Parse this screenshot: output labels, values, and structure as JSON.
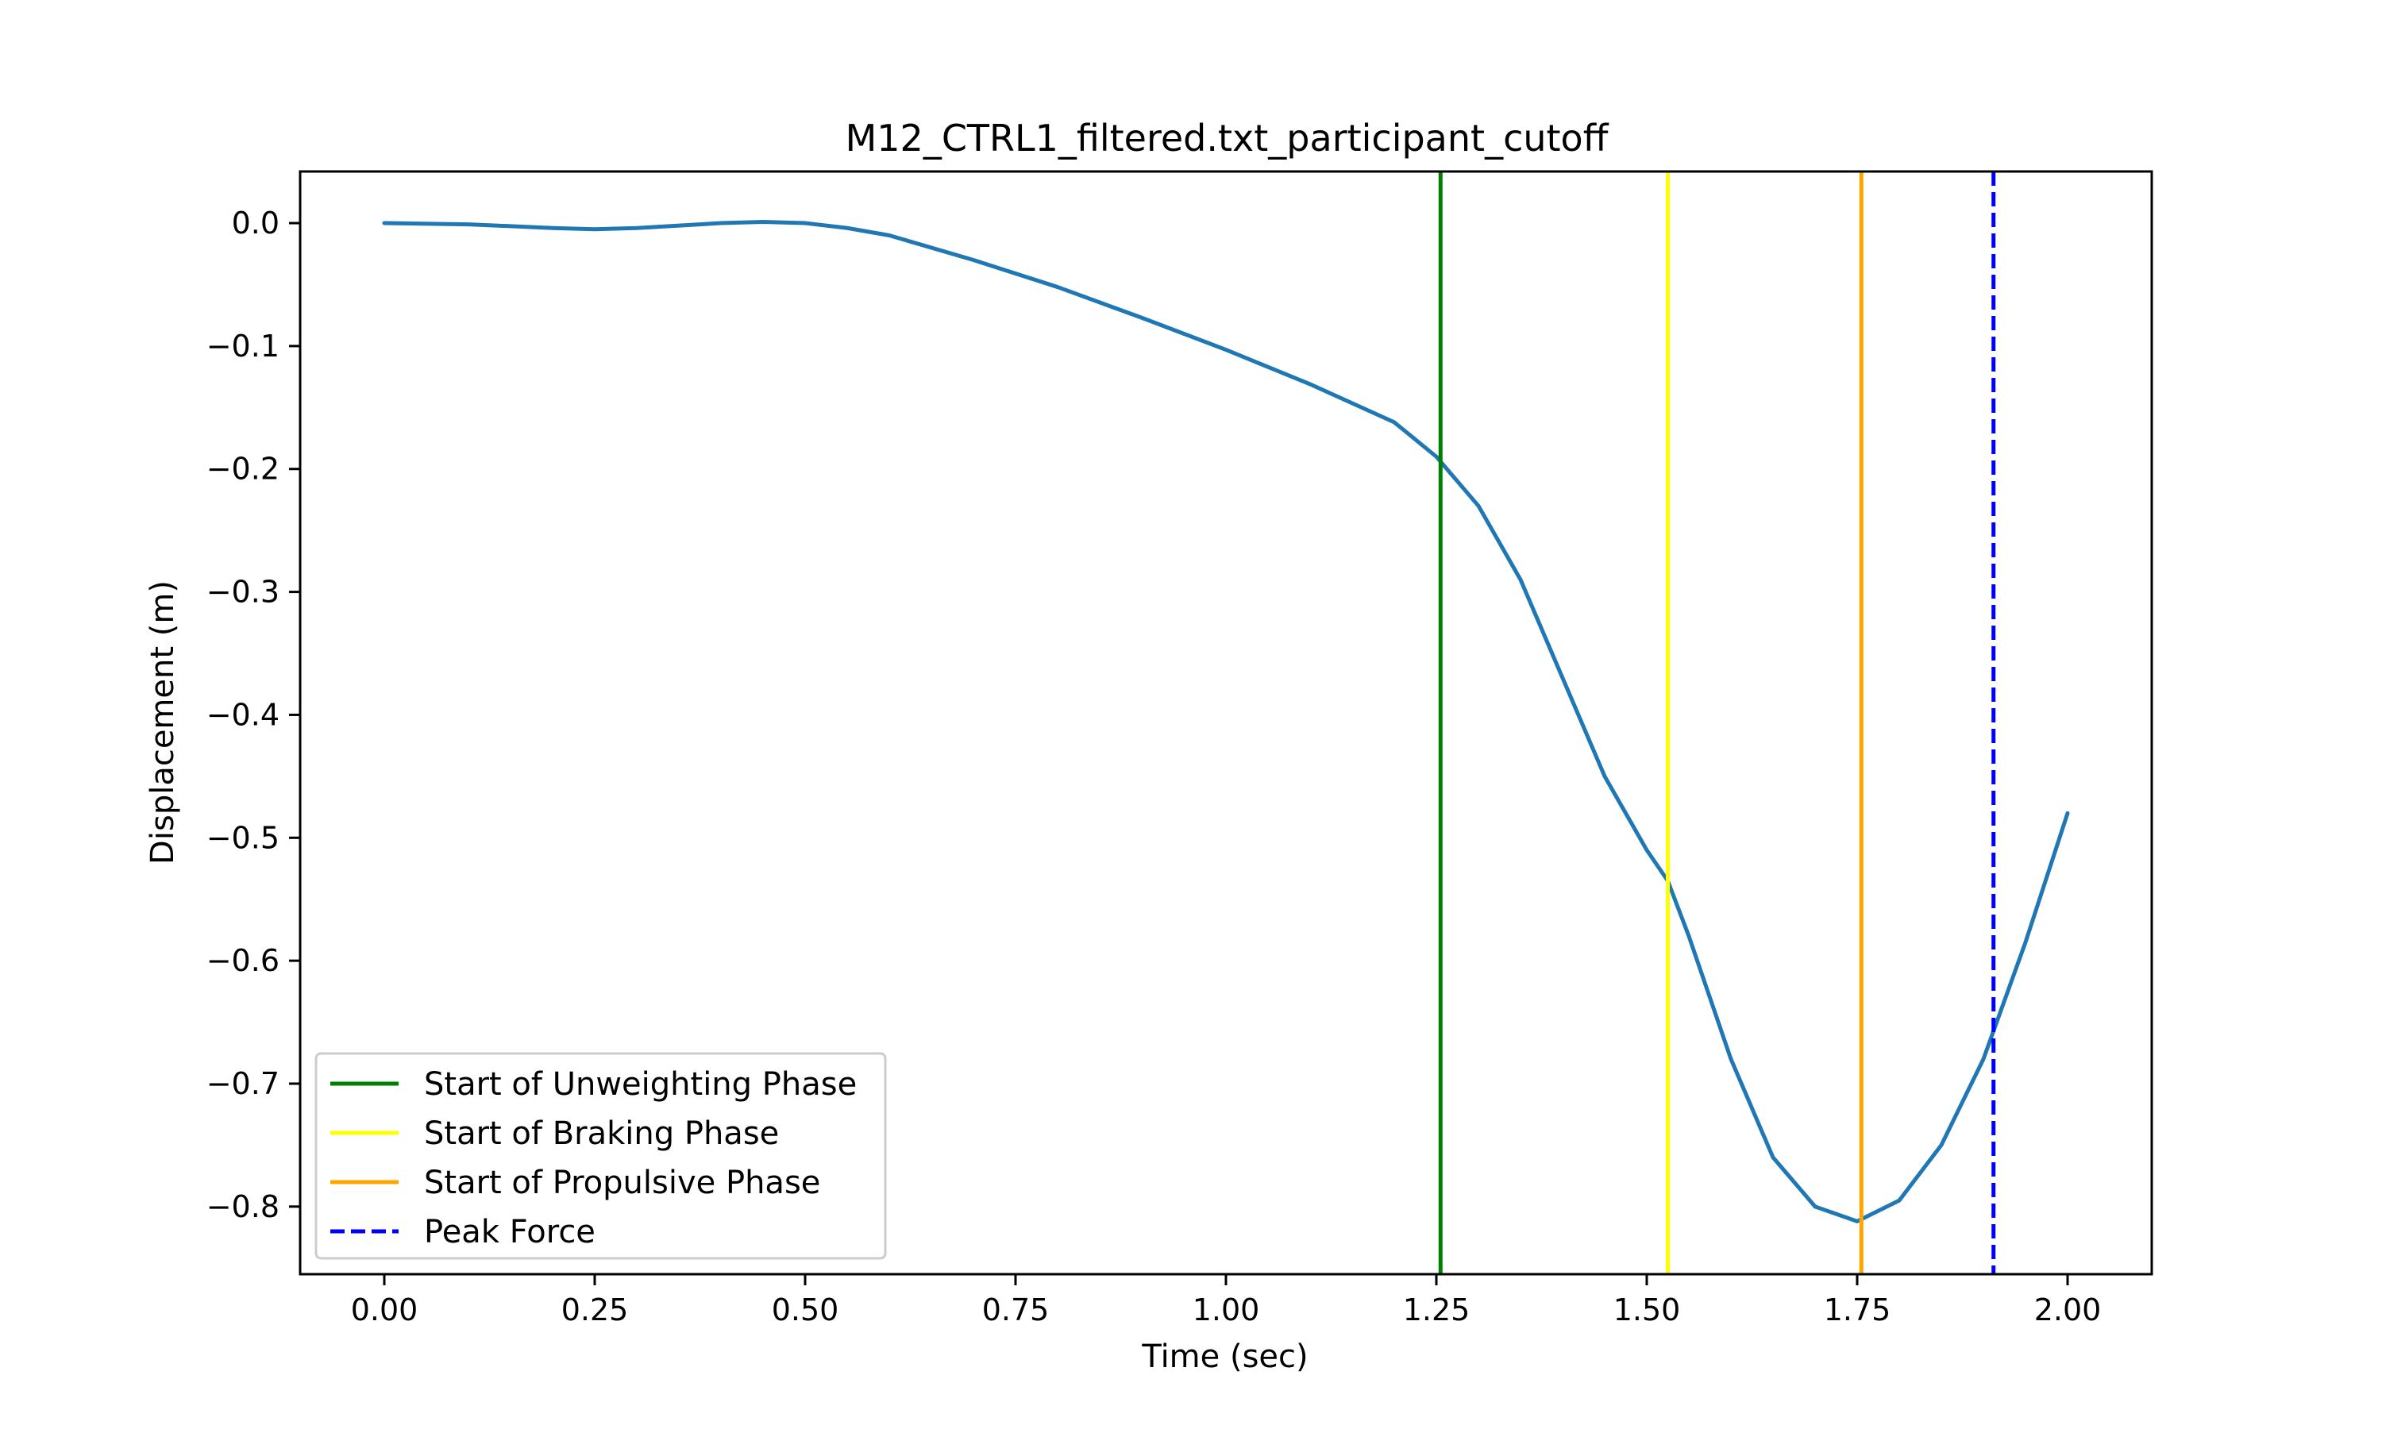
{
  "chart_data": {
    "type": "line",
    "title": "M12_CTRL1_filtered.txt_participant_cutoff",
    "xlabel": "Time (sec)",
    "ylabel": "Displacement (m)",
    "xlim": [
      -0.1,
      2.1
    ],
    "ylim": [
      -0.855,
      0.042
    ],
    "xticks": [
      0.0,
      0.25,
      0.5,
      0.75,
      1.0,
      1.25,
      1.5,
      1.75,
      2.0
    ],
    "xtick_labels": [
      "0.00",
      "0.25",
      "0.50",
      "0.75",
      "1.00",
      "1.25",
      "1.50",
      "1.75",
      "2.00"
    ],
    "yticks": [
      0.0,
      -0.1,
      -0.2,
      -0.3,
      -0.4,
      -0.5,
      -0.6,
      -0.7,
      -0.8
    ],
    "ytick_labels": [
      "0.0",
      "−0.1",
      "−0.2",
      "−0.3",
      "−0.4",
      "−0.5",
      "−0.6",
      "−0.7",
      "−0.8"
    ],
    "grid": false,
    "legend_position": "lower-left",
    "series": [
      {
        "color": "#1f77b4",
        "x": [
          0.0,
          0.1,
          0.2,
          0.25,
          0.3,
          0.4,
          0.45,
          0.5,
          0.55,
          0.6,
          0.7,
          0.8,
          0.9,
          1.0,
          1.1,
          1.2,
          1.25,
          1.3,
          1.35,
          1.4,
          1.45,
          1.5,
          1.525,
          1.55,
          1.6,
          1.65,
          1.7,
          1.75,
          1.8,
          1.85,
          1.9,
          1.95,
          2.0
        ],
        "y": [
          0.0,
          -0.001,
          -0.004,
          -0.005,
          -0.004,
          0.0,
          0.001,
          0.0,
          -0.004,
          -0.01,
          -0.03,
          -0.052,
          -0.077,
          -0.103,
          -0.131,
          -0.162,
          -0.19,
          -0.23,
          -0.29,
          -0.37,
          -0.45,
          -0.51,
          -0.535,
          -0.58,
          -0.68,
          -0.76,
          -0.8,
          -0.812,
          -0.795,
          -0.75,
          -0.68,
          -0.585,
          -0.48
        ]
      }
    ],
    "vlines": [
      {
        "name": "Start of Unweighting Phase",
        "x": 1.255,
        "color": "#008000",
        "style": "solid"
      },
      {
        "name": "Start of Braking Phase",
        "x": 1.525,
        "color": "#ffff00",
        "style": "solid"
      },
      {
        "name": "Start of Propulsive Phase",
        "x": 1.755,
        "color": "#ffa500",
        "style": "solid"
      },
      {
        "name": "Peak Force",
        "x": 1.912,
        "color": "#0000ff",
        "style": "dashed"
      }
    ]
  }
}
